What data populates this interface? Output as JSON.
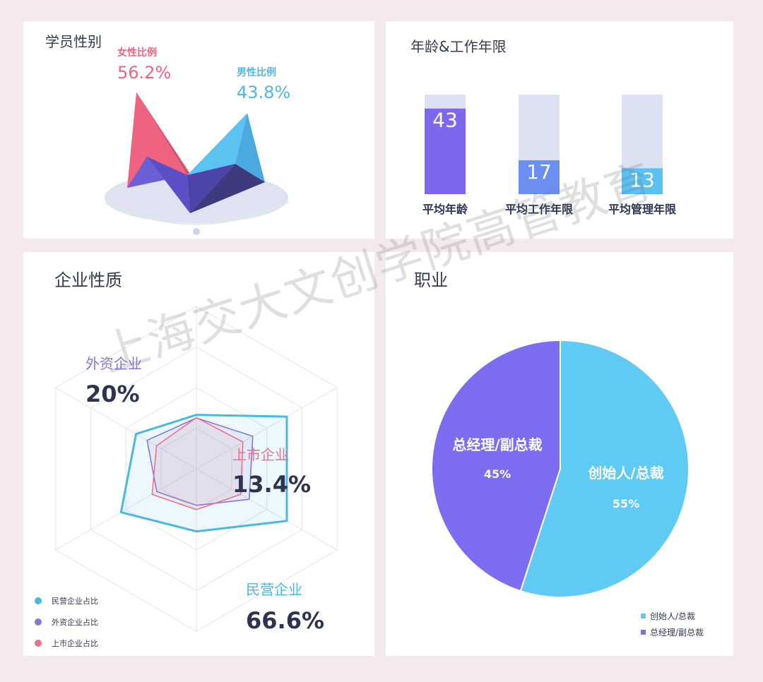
{
  "chart_data": [
    {
      "type": "pie",
      "title": "学员性别",
      "categories": [
        "女性比例",
        "男性比例"
      ],
      "values": [
        56.2,
        43.8
      ],
      "value_labels": [
        "56.2%",
        "43.8%"
      ],
      "colors": [
        "#ef6380",
        "#5bc3f2"
      ]
    },
    {
      "type": "bar",
      "title": "年龄&工作年限",
      "categories": [
        "平均年龄",
        "平均工作年限",
        "平均管理年限"
      ],
      "values": [
        43,
        17,
        13
      ],
      "value_labels": [
        "43",
        "17",
        "13"
      ],
      "ylim": [
        0,
        50
      ],
      "colors": [
        "#7b68ee",
        "#6b8ef2",
        "#5bc0f2"
      ],
      "track_color": "#dde2f2"
    },
    {
      "type": "radar",
      "title": "企业性质",
      "series": [
        {
          "name": "民营企业占比",
          "value": 66.6,
          "label": "民营企业",
          "value_label": "66.6%",
          "color": "#4ab8e0"
        },
        {
          "name": "外资企业占比",
          "value": 20,
          "label": "外资企业",
          "value_label": "20%",
          "color": "#8578d6"
        },
        {
          "name": "上市企业占比",
          "value": 13.4,
          "label": "上市企业",
          "value_label": "13.4%",
          "color": "#e8738a"
        }
      ],
      "legend": [
        "民营企业占比",
        "外资企业占比",
        "上市企业占比"
      ],
      "legend_position": "bottom-left"
    },
    {
      "type": "pie",
      "title": "职业",
      "categories": [
        "创始人/总裁",
        "总经理/副总裁"
      ],
      "values": [
        55,
        45
      ],
      "value_labels": [
        "55%",
        "45%"
      ],
      "colors": [
        "#5fcbf5",
        "#7b6cf0"
      ],
      "legend": [
        "创始人/总裁",
        "总经理/副总裁"
      ],
      "legend_position": "bottom-right"
    }
  ],
  "watermark": "上海交大文创学院高管教育"
}
